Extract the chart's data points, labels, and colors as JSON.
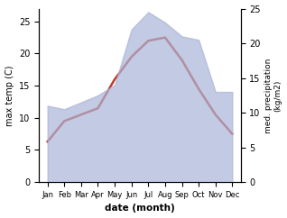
{
  "months": [
    "Jan",
    "Feb",
    "Mar",
    "Apr",
    "May",
    "Jun",
    "Jul",
    "Aug",
    "Sep",
    "Oct",
    "Nov",
    "Dec"
  ],
  "month_indices": [
    0,
    1,
    2,
    3,
    4,
    5,
    6,
    7,
    8,
    9,
    10,
    11
  ],
  "temp_max": [
    6.3,
    9.5,
    10.5,
    11.5,
    16.0,
    19.5,
    22.0,
    22.5,
    19.0,
    14.5,
    10.5,
    7.5
  ],
  "precipitation": [
    11.0,
    10.5,
    11.5,
    12.5,
    14.0,
    22.0,
    24.5,
    23.0,
    21.0,
    20.5,
    13.0,
    13.0
  ],
  "temp_color": "#c0392b",
  "precip_fill_color": "#aab4d8",
  "precip_fill_alpha": 0.7,
  "temp_ylim": [
    0,
    27
  ],
  "precip_ylim": [
    0,
    25
  ],
  "temp_ylabel": "max temp (C)",
  "precip_ylabel": "med. precipitation\n(kg/m2)",
  "xlabel": "date (month)",
  "temp_yticks": [
    0,
    5,
    10,
    15,
    20,
    25
  ],
  "precip_yticks": [
    0,
    5,
    10,
    15,
    20,
    25
  ],
  "background_color": "#ffffff"
}
